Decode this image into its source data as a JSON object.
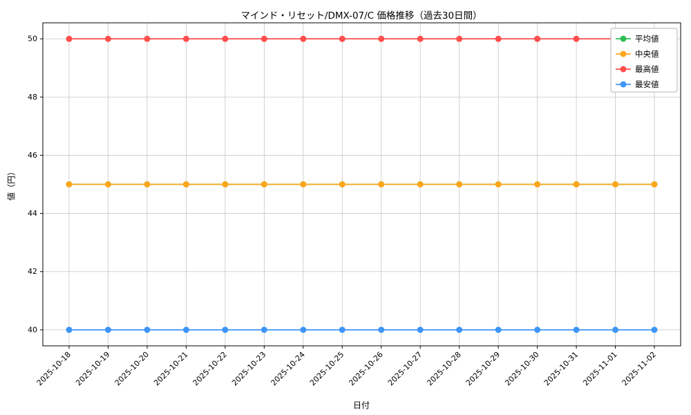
{
  "chart_data": {
    "type": "line",
    "title": "マインド・リセット/DMX-07/C 価格推移（過去30日間）",
    "xlabel": "日付",
    "ylabel": "値（円）",
    "x": [
      "2025-10-18",
      "2025-10-19",
      "2025-10-20",
      "2025-10-21",
      "2025-10-22",
      "2025-10-23",
      "2025-10-24",
      "2025-10-25",
      "2025-10-26",
      "2025-10-27",
      "2025-10-28",
      "2025-10-29",
      "2025-10-30",
      "2025-10-31",
      "2025-11-01",
      "2025-11-02"
    ],
    "y_ticks": [
      40,
      42,
      44,
      46,
      48,
      50
    ],
    "ylim": [
      39.45,
      50.55
    ],
    "grid": true,
    "legend_position": "upper right",
    "series": [
      {
        "key": "average",
        "name": "平均値",
        "color": "#2dbf56",
        "values": [
          45,
          45,
          45,
          45,
          45,
          45,
          45,
          45,
          45,
          45,
          45,
          45,
          45,
          45,
          45,
          45
        ]
      },
      {
        "key": "median",
        "name": "中央値",
        "color": "#ffa61c",
        "values": [
          45,
          45,
          45,
          45,
          45,
          45,
          45,
          45,
          45,
          45,
          45,
          45,
          45,
          45,
          45,
          45
        ]
      },
      {
        "key": "max",
        "name": "最高値",
        "color": "#ff4d4d",
        "values": [
          50,
          50,
          50,
          50,
          50,
          50,
          50,
          50,
          50,
          50,
          50,
          50,
          50,
          50,
          50,
          50
        ]
      },
      {
        "key": "min",
        "name": "最安値",
        "color": "#3d96f7",
        "values": [
          40,
          40,
          40,
          40,
          40,
          40,
          40,
          40,
          40,
          40,
          40,
          40,
          40,
          40,
          40,
          40
        ]
      }
    ]
  }
}
